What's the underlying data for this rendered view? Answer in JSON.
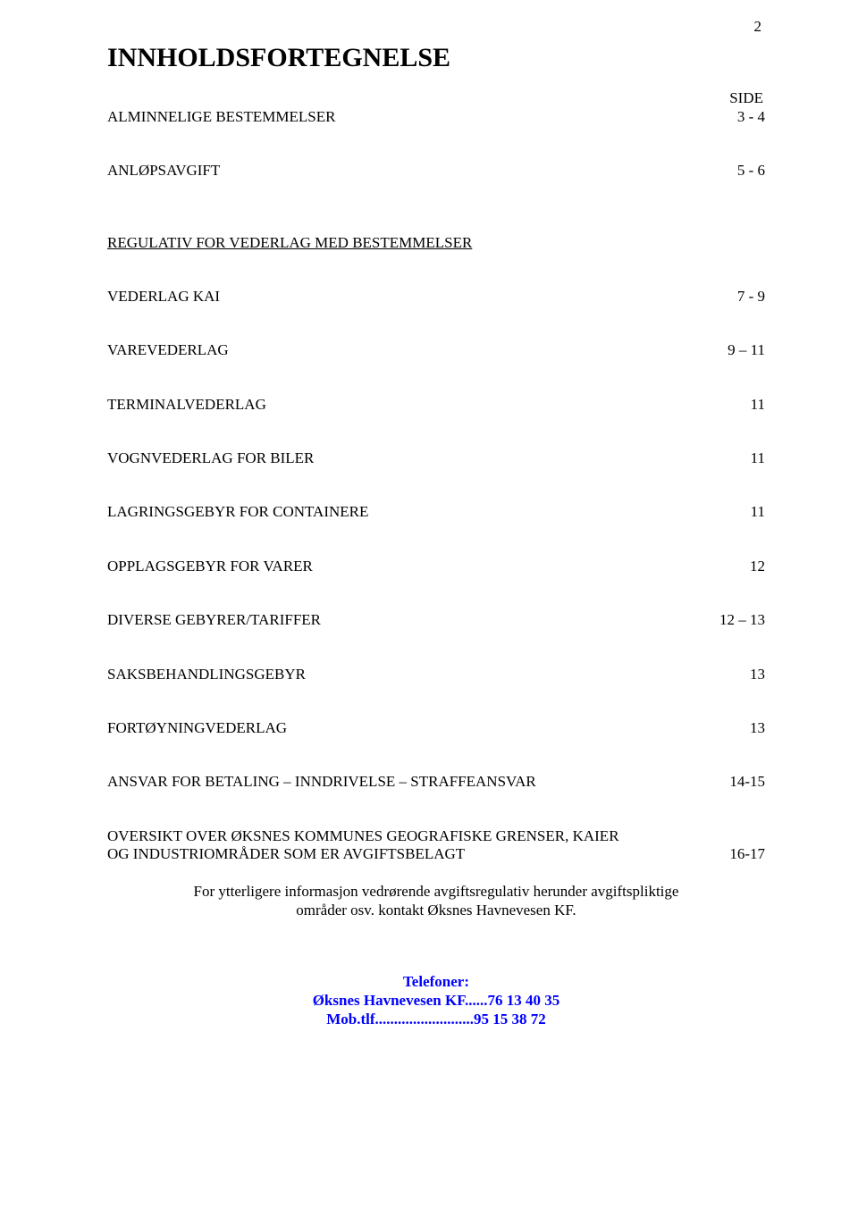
{
  "page_number": "2",
  "title": "INNHOLDSFORTEGNELSE",
  "side_label": "SIDE",
  "rows": [
    {
      "label": "ALMINNELIGE  BESTEMMELSER",
      "value": "3 - 4"
    },
    {
      "label": "ANLØPSAVGIFT",
      "value": "5 - 6"
    }
  ],
  "subheading": "REGULATIV FOR VEDERLAG MED BESTEMMELSER",
  "rows2": [
    {
      "label": "VEDERLAG  KAI",
      "value": "7 - 9"
    },
    {
      "label": "VAREVEDERLAG",
      "value": "9 – 11"
    },
    {
      "label": "TERMINALVEDERLAG",
      "value": "11"
    },
    {
      "label": "VOGNVEDERLAG FOR BILER",
      "value": "11"
    },
    {
      "label": "LAGRINGSGEBYR FOR CONTAINERE",
      "value": "11"
    },
    {
      "label": "OPPLAGSGEBYR FOR VARER",
      "value": "12"
    },
    {
      "label": "DIVERSE GEBYRER/TARIFFER",
      "value": "12 – 13"
    },
    {
      "label": "SAKSBEHANDLINGSGEBYR",
      "value": "13"
    },
    {
      "label": "FORTØYNINGVEDERLAG",
      "value": "13"
    },
    {
      "label": "ANSVAR FOR BETALING – INNDRIVELSE – STRAFFEANSVAR",
      "value": "14-15"
    }
  ],
  "oversikt": {
    "line1": "OVERSIKT OVER  ØKSNES KOMMUNES GEOGRAFISKE  GRENSER, KAIER",
    "line2_label": "OG INDUSTRIOMRÅDER SOM ER AVGIFTSBELAGT",
    "line2_value": "16-17"
  },
  "para_line1": "For ytterligere informasjon vedrørende avgiftsregulativ herunder avgiftspliktige",
  "para_line2": "områder osv. kontakt Øksnes Havnevesen KF.",
  "telefoner": {
    "heading": "Telefoner:",
    "line1": "Øksnes Havnevesen KF......76 13 40 35",
    "line2": "Mob.tlf..........................95 15 38 72"
  },
  "colors": {
    "text": "#000000",
    "link_blue": "#0000ff",
    "background": "#ffffff"
  },
  "fontsizes": {
    "title": 30,
    "body": 17
  }
}
